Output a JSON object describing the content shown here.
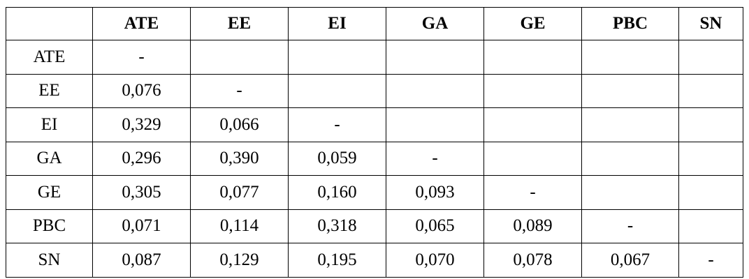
{
  "table": {
    "columns": [
      "ATE",
      "EE",
      "EI",
      "GA",
      "GE",
      "PBC",
      "SN"
    ],
    "rows": [
      {
        "label": "ATE",
        "cells": [
          "-"
        ]
      },
      {
        "label": "EE",
        "cells": [
          "0,076",
          "-"
        ]
      },
      {
        "label": "EI",
        "cells": [
          "0,329",
          "0,066",
          "-"
        ]
      },
      {
        "label": "GA",
        "cells": [
          "0,296",
          "0,390",
          "0,059",
          "-"
        ]
      },
      {
        "label": "GE",
        "cells": [
          "0,305",
          "0,077",
          "0,160",
          "0,093",
          "-"
        ]
      },
      {
        "label": "PBC",
        "cells": [
          "0,071",
          "0,114",
          "0,318",
          "0,065",
          "0,089",
          "-"
        ]
      },
      {
        "label": "SN",
        "cells": [
          "0,087",
          "0,129",
          "0,195",
          "0,070",
          "0,078",
          "0,067",
          "-"
        ]
      }
    ]
  }
}
